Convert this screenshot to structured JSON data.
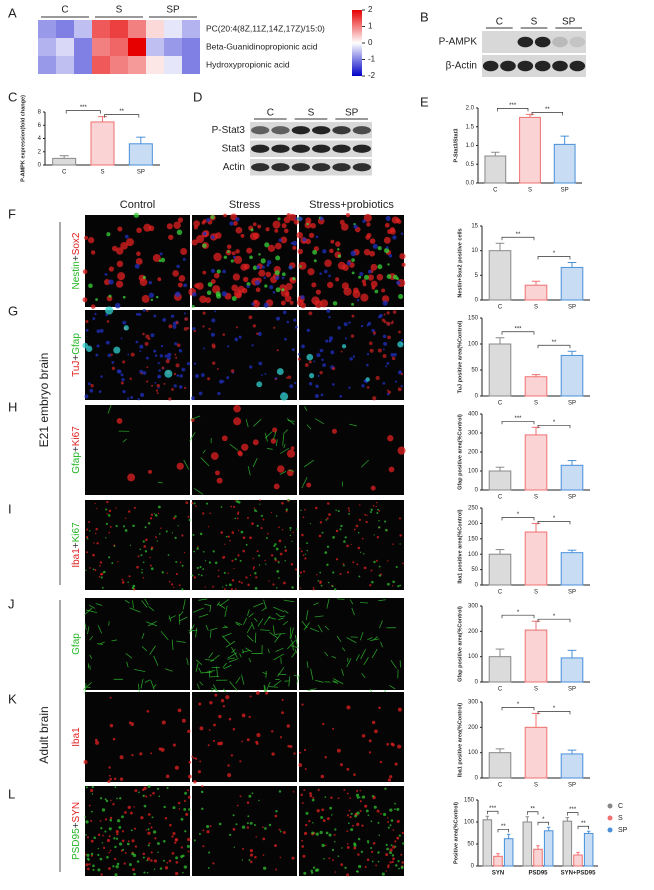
{
  "panel_letters": [
    "A",
    "B",
    "C",
    "D",
    "E",
    "F",
    "G",
    "H",
    "I",
    "J",
    "K",
    "L"
  ],
  "blots": [
    {
      "groups": [
        "C",
        "S",
        "SP"
      ],
      "rows": [
        "P-AMPK",
        "β-Actin"
      ]
    },
    {
      "groups": [
        "C",
        "S",
        "SP"
      ],
      "rows": [
        "P-Stat3",
        "Stat3",
        "Actin"
      ]
    }
  ],
  "image_grid": {
    "columns": [
      "Control",
      "Stress",
      "Stress+probiotics"
    ],
    "rows": [
      [
        {
          "text": "Nestin",
          "color": "#22b522"
        },
        {
          "text": "+",
          "color": "#333333"
        },
        {
          "text": "Sox2",
          "color": "#e02020"
        }
      ],
      [
        {
          "text": "TuJ",
          "color": "#e02020"
        },
        {
          "text": "+",
          "color": "#333333"
        },
        {
          "text": "Gfap",
          "color": "#22b522"
        }
      ],
      [
        {
          "text": "Gfap",
          "color": "#22b522"
        },
        {
          "text": "+",
          "color": "#333333"
        },
        {
          "text": "Ki67",
          "color": "#e02020"
        }
      ],
      [
        {
          "text": "Iba1",
          "color": "#e02020"
        },
        {
          "text": "+",
          "color": "#333333"
        },
        {
          "text": "Ki67",
          "color": "#22b522"
        }
      ],
      [
        {
          "text": "Gfap",
          "color": "#22b522"
        }
      ],
      [
        {
          "text": "Iba1",
          "color": "#e02020"
        }
      ],
      [
        {
          "text": "PSD95",
          "color": "#22b522"
        },
        {
          "text": "+",
          "color": "#333333"
        },
        {
          "text": "SYN",
          "color": "#e02020"
        }
      ]
    ],
    "regions": [
      "E21 embryo brain",
      "Adult brain"
    ]
  },
  "chart_data": [
    {
      "type": "heatmap",
      "groups": [
        "C",
        "S",
        "SP"
      ],
      "rows": [
        "PC(20:4(8Z,11Z,14Z,17Z)/15:0)",
        "Beta-Guanidinopropionic acid",
        "Hydroxypropionic acid"
      ],
      "values": [
        [
          -0.8,
          -1,
          -0.5,
          1.3,
          1.5,
          1.0,
          0.3,
          -0.2,
          -0.6
        ],
        [
          -0.6,
          -0.3,
          -1.0,
          1.0,
          1.2,
          2.0,
          -0.5,
          -0.8,
          -1.0
        ],
        [
          -0.8,
          -0.5,
          -1.0,
          1.3,
          1.0,
          0.8,
          0.2,
          -0.2,
          -1.0
        ]
      ],
      "zlim": [
        -2,
        2
      ],
      "zticks": [
        2,
        1,
        0,
        -1,
        -2
      ],
      "colors": [
        "#0000c8",
        "#ffffff",
        "#e60000"
      ]
    },
    {
      "type": "bar",
      "ylabel": "P-AMPK expression(fold change)",
      "categories": [
        "C",
        "S",
        "SP"
      ],
      "values": [
        1,
        6.5,
        3.2
      ],
      "errors": [
        0.4,
        0.8,
        1.0
      ],
      "colors": [
        "#888888",
        "#f07070",
        "#4a90d9"
      ],
      "ylim": [
        0,
        8
      ],
      "yticks": [
        0,
        2,
        4,
        6,
        8
      ],
      "annotations": [
        "***",
        "**"
      ]
    },
    {
      "type": "bar",
      "ylabel": "P-Stat3/Stat3",
      "categories": [
        "C",
        "S",
        "SP"
      ],
      "values": [
        0.72,
        1.75,
        1.03
      ],
      "errors": [
        0.1,
        0.08,
        0.22
      ],
      "colors": [
        "#888888",
        "#f07070",
        "#4a90d9"
      ],
      "ylim": [
        0,
        2
      ],
      "yticks": [
        {
          "value": 0,
          "label": "0.0"
        },
        {
          "value": 0.5,
          "label": "0.5"
        },
        {
          "value": 1,
          "label": "1.0"
        },
        {
          "value": 1.5,
          "label": "1.5"
        },
        {
          "value": 2,
          "label": "2.0"
        }
      ],
      "annotations": [
        "***",
        "**"
      ]
    },
    {
      "type": "bar",
      "ylabel": "Nestin+Sox2 positive cells",
      "categories": [
        "C",
        "S",
        "SP"
      ],
      "values": [
        10,
        3,
        6.6
      ],
      "errors": [
        1.5,
        0.8,
        1.0
      ],
      "colors": [
        "#888888",
        "#f07070",
        "#4a90d9"
      ],
      "ylim": [
        0,
        15
      ],
      "yticks": [
        0,
        5,
        10,
        15
      ],
      "annotations": [
        "**",
        "*"
      ]
    },
    {
      "type": "bar",
      "ylabel": "TuJ positive area(%Control)",
      "categories": [
        "C",
        "S",
        "SP"
      ],
      "values": [
        100,
        37,
        78
      ],
      "errors": [
        12,
        4,
        8
      ],
      "colors": [
        "#888888",
        "#f07070",
        "#4a90d9"
      ],
      "ylim": [
        0,
        150
      ],
      "yticks": [
        0,
        50,
        100,
        150
      ],
      "annotations": [
        "***",
        "**"
      ]
    },
    {
      "type": "bar",
      "ylabel": "Gfap positive area(%Control)",
      "categories": [
        "C",
        "S",
        "SP"
      ],
      "values": [
        100,
        290,
        130
      ],
      "errors": [
        20,
        40,
        25
      ],
      "colors": [
        "#888888",
        "#f07070",
        "#4a90d9"
      ],
      "ylim": [
        0,
        400
      ],
      "yticks": [
        0,
        100,
        200,
        300,
        400
      ],
      "annotations": [
        "***",
        "*"
      ]
    },
    {
      "type": "bar",
      "ylabel": "Iba1 positive area(%Control)",
      "categories": [
        "C",
        "S",
        "SP"
      ],
      "values": [
        100,
        172,
        105
      ],
      "errors": [
        15,
        28,
        8
      ],
      "colors": [
        "#888888",
        "#f07070",
        "#4a90d9"
      ],
      "ylim": [
        0,
        250
      ],
      "yticks": [
        0,
        50,
        100,
        150,
        200,
        250
      ],
      "annotations": [
        "*",
        "*"
      ]
    },
    {
      "type": "bar",
      "ylabel": "Gfap positive area(%Control)",
      "categories": [
        "C",
        "S",
        "SP"
      ],
      "values": [
        100,
        205,
        95
      ],
      "errors": [
        30,
        35,
        30
      ],
      "colors": [
        "#888888",
        "#f07070",
        "#4a90d9"
      ],
      "ylim": [
        0,
        300
      ],
      "yticks": [
        0,
        100,
        200,
        300
      ],
      "annotations": [
        "*",
        "*"
      ]
    },
    {
      "type": "bar",
      "ylabel": "Iba1 positive area(%Control)",
      "categories": [
        "C",
        "S",
        "SP"
      ],
      "values": [
        100,
        200,
        95
      ],
      "errors": [
        15,
        55,
        15
      ],
      "colors": [
        "#888888",
        "#f07070",
        "#4a90d9"
      ],
      "ylim": [
        0,
        300
      ],
      "yticks": [
        0,
        100,
        200,
        300
      ],
      "annotations": [
        "*",
        "*"
      ]
    },
    {
      "type": "bar",
      "ylabel": "Positive area(%Control)",
      "categories": [
        "SYN",
        "PSD95",
        "SYN+PSD95"
      ],
      "series": [
        {
          "name": "C",
          "color": "#888888",
          "values": [
            105,
            100,
            102
          ],
          "errors": [
            8,
            12,
            8
          ]
        },
        {
          "name": "S",
          "color": "#f07070",
          "values": [
            22,
            38,
            25
          ],
          "errors": [
            6,
            8,
            6
          ]
        },
        {
          "name": "SP",
          "color": "#4a90d9",
          "values": [
            62,
            80,
            74
          ],
          "errors": [
            10,
            8,
            5
          ]
        }
      ],
      "ylim": [
        0,
        150
      ],
      "yticks": [
        0,
        50,
        100,
        150
      ],
      "annotations": [
        [
          "***",
          "**"
        ],
        [
          "**",
          "*"
        ],
        [
          "***",
          "**"
        ]
      ],
      "legend": "right"
    }
  ]
}
